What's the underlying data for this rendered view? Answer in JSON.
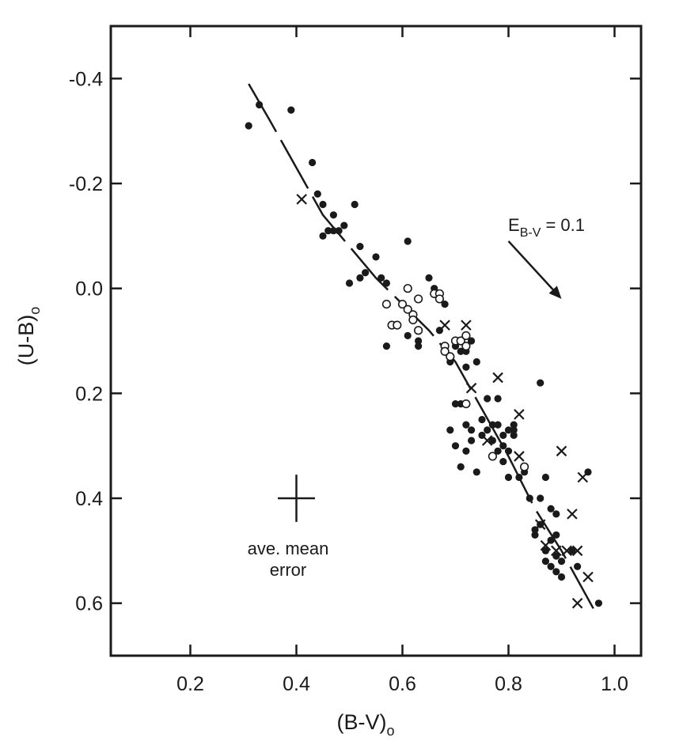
{
  "chart_data": {
    "type": "scatter",
    "title": "",
    "xlabel": "(B-V)",
    "xlabel_sub": "o",
    "ylabel": "(U-B)",
    "ylabel_sub": "o",
    "xlim": [
      0.05,
      1.05
    ],
    "ylim": [
      0.7,
      -0.5
    ],
    "y_inverted": true,
    "grid": false,
    "legend": "none",
    "x_ticks": [
      {
        "value": 0.2,
        "label": "0.2"
      },
      {
        "value": 0.4,
        "label": "0.4"
      },
      {
        "value": 0.6,
        "label": "0.6"
      },
      {
        "value": 0.8,
        "label": "0.8"
      },
      {
        "value": 1.0,
        "label": "1.0"
      }
    ],
    "y_ticks": [
      {
        "value": -0.4,
        "label": "-0.4"
      },
      {
        "value": -0.2,
        "label": "-0.2"
      },
      {
        "value": 0.0,
        "label": "0.0"
      },
      {
        "value": 0.2,
        "label": "0.2"
      },
      {
        "value": 0.4,
        "label": "0.4"
      },
      {
        "value": 0.6,
        "label": "0.6"
      }
    ],
    "series": [
      {
        "marker": "filled-circle",
        "points": [
          [
            0.31,
            -0.31
          ],
          [
            0.33,
            -0.35
          ],
          [
            0.39,
            -0.34
          ],
          [
            0.43,
            -0.24
          ],
          [
            0.44,
            -0.18
          ],
          [
            0.45,
            -0.16
          ],
          [
            0.45,
            -0.1
          ],
          [
            0.46,
            -0.11
          ],
          [
            0.47,
            -0.14
          ],
          [
            0.47,
            -0.11
          ],
          [
            0.48,
            -0.11
          ],
          [
            0.49,
            -0.12
          ],
          [
            0.5,
            -0.01
          ],
          [
            0.51,
            -0.16
          ],
          [
            0.52,
            -0.08
          ],
          [
            0.52,
            -0.02
          ],
          [
            0.53,
            -0.03
          ],
          [
            0.55,
            -0.06
          ],
          [
            0.56,
            -0.02
          ],
          [
            0.57,
            -0.01
          ],
          [
            0.57,
            0.11
          ],
          [
            0.59,
            0.07
          ],
          [
            0.61,
            -0.09
          ],
          [
            0.61,
            0.09
          ],
          [
            0.62,
            0.06
          ],
          [
            0.63,
            0.1
          ],
          [
            0.63,
            0.11
          ],
          [
            0.65,
            -0.02
          ],
          [
            0.66,
            0.0
          ],
          [
            0.67,
            0.08
          ],
          [
            0.68,
            0.03
          ],
          [
            0.69,
            0.14
          ],
          [
            0.7,
            0.11
          ],
          [
            0.71,
            0.12
          ],
          [
            0.72,
            0.12
          ],
          [
            0.72,
            0.15
          ],
          [
            0.73,
            0.1
          ],
          [
            0.74,
            0.14
          ],
          [
            0.69,
            0.27
          ],
          [
            0.7,
            0.22
          ],
          [
            0.71,
            0.22
          ],
          [
            0.7,
            0.3
          ],
          [
            0.71,
            0.34
          ],
          [
            0.72,
            0.26
          ],
          [
            0.72,
            0.31
          ],
          [
            0.73,
            0.27
          ],
          [
            0.73,
            0.29
          ],
          [
            0.74,
            0.35
          ],
          [
            0.75,
            0.25
          ],
          [
            0.75,
            0.28
          ],
          [
            0.76,
            0.21
          ],
          [
            0.76,
            0.27
          ],
          [
            0.77,
            0.26
          ],
          [
            0.77,
            0.29
          ],
          [
            0.78,
            0.21
          ],
          [
            0.78,
            0.26
          ],
          [
            0.78,
            0.31
          ],
          [
            0.79,
            0.28
          ],
          [
            0.79,
            0.33
          ],
          [
            0.8,
            0.27
          ],
          [
            0.8,
            0.31
          ],
          [
            0.81,
            0.26
          ],
          [
            0.81,
            0.28
          ],
          [
            0.81,
            0.27
          ],
          [
            0.86,
            0.18
          ],
          [
            0.84,
            0.4
          ],
          [
            0.85,
            0.46
          ],
          [
            0.85,
            0.47
          ],
          [
            0.86,
            0.4
          ],
          [
            0.86,
            0.45
          ],
          [
            0.87,
            0.36
          ],
          [
            0.87,
            0.5
          ],
          [
            0.87,
            0.52
          ],
          [
            0.88,
            0.42
          ],
          [
            0.88,
            0.48
          ],
          [
            0.88,
            0.53
          ],
          [
            0.89,
            0.43
          ],
          [
            0.89,
            0.47
          ],
          [
            0.89,
            0.51
          ],
          [
            0.89,
            0.54
          ],
          [
            0.9,
            0.52
          ],
          [
            0.9,
            0.55
          ],
          [
            0.92,
            0.5
          ],
          [
            0.93,
            0.53
          ],
          [
            0.95,
            0.35
          ],
          [
            0.97,
            0.6
          ],
          [
            0.8,
            0.36
          ],
          [
            0.82,
            0.36
          ],
          [
            0.83,
            0.35
          ],
          [
            0.79,
            0.3
          ]
        ]
      },
      {
        "marker": "open-circle",
        "points": [
          [
            0.57,
            0.03
          ],
          [
            0.58,
            0.07
          ],
          [
            0.59,
            0.07
          ],
          [
            0.6,
            0.03
          ],
          [
            0.61,
            0.04
          ],
          [
            0.61,
            0.0
          ],
          [
            0.62,
            0.05
          ],
          [
            0.62,
            0.06
          ],
          [
            0.63,
            0.02
          ],
          [
            0.63,
            0.08
          ],
          [
            0.66,
            0.01
          ],
          [
            0.67,
            0.01
          ],
          [
            0.67,
            0.02
          ],
          [
            0.68,
            0.11
          ],
          [
            0.68,
            0.12
          ],
          [
            0.69,
            0.13
          ],
          [
            0.7,
            0.1
          ],
          [
            0.71,
            0.1
          ],
          [
            0.72,
            0.11
          ],
          [
            0.72,
            0.09
          ],
          [
            0.72,
            0.22
          ],
          [
            0.77,
            0.32
          ],
          [
            0.83,
            0.34
          ]
        ]
      },
      {
        "marker": "cross",
        "points": [
          [
            0.41,
            -0.17
          ],
          [
            0.68,
            0.07
          ],
          [
            0.72,
            0.07
          ],
          [
            0.73,
            0.19
          ],
          [
            0.76,
            0.29
          ],
          [
            0.78,
            0.17
          ],
          [
            0.82,
            0.24
          ],
          [
            0.82,
            0.32
          ],
          [
            0.86,
            0.45
          ],
          [
            0.87,
            0.49
          ],
          [
            0.89,
            0.5
          ],
          [
            0.9,
            0.31
          ],
          [
            0.91,
            0.5
          ],
          [
            0.92,
            0.43
          ],
          [
            0.93,
            0.5
          ],
          [
            0.93,
            0.6
          ],
          [
            0.94,
            0.36
          ],
          [
            0.95,
            0.55
          ]
        ]
      }
    ],
    "fit_line": [
      [
        0.31,
        -0.39
      ],
      [
        0.35,
        -0.32
      ],
      [
        0.4,
        -0.23
      ],
      [
        0.45,
        -0.14
      ],
      [
        0.5,
        -0.08
      ],
      [
        0.55,
        -0.02
      ],
      [
        0.6,
        0.03
      ],
      [
        0.65,
        0.08
      ],
      [
        0.7,
        0.14
      ],
      [
        0.75,
        0.23
      ],
      [
        0.8,
        0.32
      ],
      [
        0.85,
        0.42
      ],
      [
        0.9,
        0.5
      ],
      [
        0.96,
        0.61
      ]
    ],
    "reddening_vector": {
      "label": "E",
      "label_sub": "B-V",
      "label_value": " = 0.1",
      "from": [
        0.8,
        -0.09
      ],
      "to": [
        0.9,
        0.02
      ]
    },
    "error_bar": {
      "center": [
        0.4,
        0.4
      ],
      "dx": 0.035,
      "dy": 0.045,
      "label_line1": "ave. mean",
      "label_line2": "error"
    }
  }
}
